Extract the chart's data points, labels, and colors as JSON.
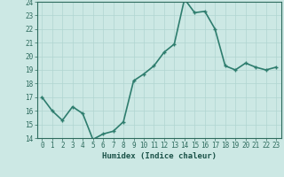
{
  "xlabel": "Humidex (Indice chaleur)",
  "x_values": [
    0,
    1,
    2,
    3,
    4,
    5,
    6,
    7,
    8,
    9,
    10,
    11,
    12,
    13,
    14,
    15,
    16,
    17,
    18,
    19,
    20,
    21,
    22,
    23
  ],
  "y_values": [
    17.0,
    16.0,
    15.3,
    16.3,
    15.8,
    13.9,
    14.3,
    14.5,
    15.2,
    18.2,
    18.7,
    19.3,
    20.3,
    20.9,
    24.2,
    23.2,
    23.3,
    22.0,
    19.3,
    19.0,
    19.5,
    19.2,
    19.0,
    19.2
  ],
  "ylim": [
    14,
    24
  ],
  "xlim": [
    -0.5,
    23.5
  ],
  "yticks": [
    14,
    15,
    16,
    17,
    18,
    19,
    20,
    21,
    22,
    23,
    24
  ],
  "xticks": [
    0,
    1,
    2,
    3,
    4,
    5,
    6,
    7,
    8,
    9,
    10,
    11,
    12,
    13,
    14,
    15,
    16,
    17,
    18,
    19,
    20,
    21,
    22,
    23
  ],
  "line_color": "#2e7d6e",
  "marker_color": "#2e7d6e",
  "bg_color": "#cce8e4",
  "grid_color": "#b0d5d0",
  "tick_label_color": "#2e6b5e",
  "axis_label_color": "#1a5248",
  "line_width": 1.2,
  "marker_size": 2.5,
  "tick_fontsize": 5.5,
  "xlabel_fontsize": 6.5
}
